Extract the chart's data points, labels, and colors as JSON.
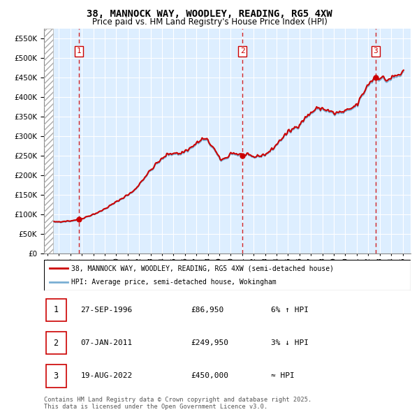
{
  "title": "38, MANNOCK WAY, WOODLEY, READING, RG5 4XW",
  "subtitle": "Price paid vs. HM Land Registry's House Price Index (HPI)",
  "legend_property": "38, MANNOCK WAY, WOODLEY, READING, RG5 4XW (semi-detached house)",
  "legend_hpi": "HPI: Average price, semi-detached house, Wokingham",
  "transactions": [
    {
      "num": 1,
      "date": "1996-09-27",
      "price": 86950,
      "label": "27-SEP-1996",
      "price_label": "£86,950",
      "pct": "6% ↑ HPI"
    },
    {
      "num": 2,
      "date": "2011-01-07",
      "price": 249950,
      "label": "07-JAN-2011",
      "price_label": "£249,950",
      "pct": "3% ↓ HPI"
    },
    {
      "num": 3,
      "date": "2022-08-19",
      "price": 450000,
      "label": "19-AUG-2022",
      "price_label": "£450,000",
      "pct": "≈ HPI"
    }
  ],
  "copyright": "Contains HM Land Registry data © Crown copyright and database right 2025.\nThis data is licensed under the Open Government Licence v3.0.",
  "ylim": [
    0,
    575000
  ],
  "yticks": [
    0,
    50000,
    100000,
    150000,
    200000,
    250000,
    300000,
    350000,
    400000,
    450000,
    500000,
    550000
  ],
  "line_color_property": "#cc0000",
  "line_color_hpi": "#7aafd4",
  "dashed_line_color": "#cc0000",
  "background_color": "#ddeeff",
  "grid_color": "#ffffff",
  "xstart": 1994,
  "xend": 2026
}
